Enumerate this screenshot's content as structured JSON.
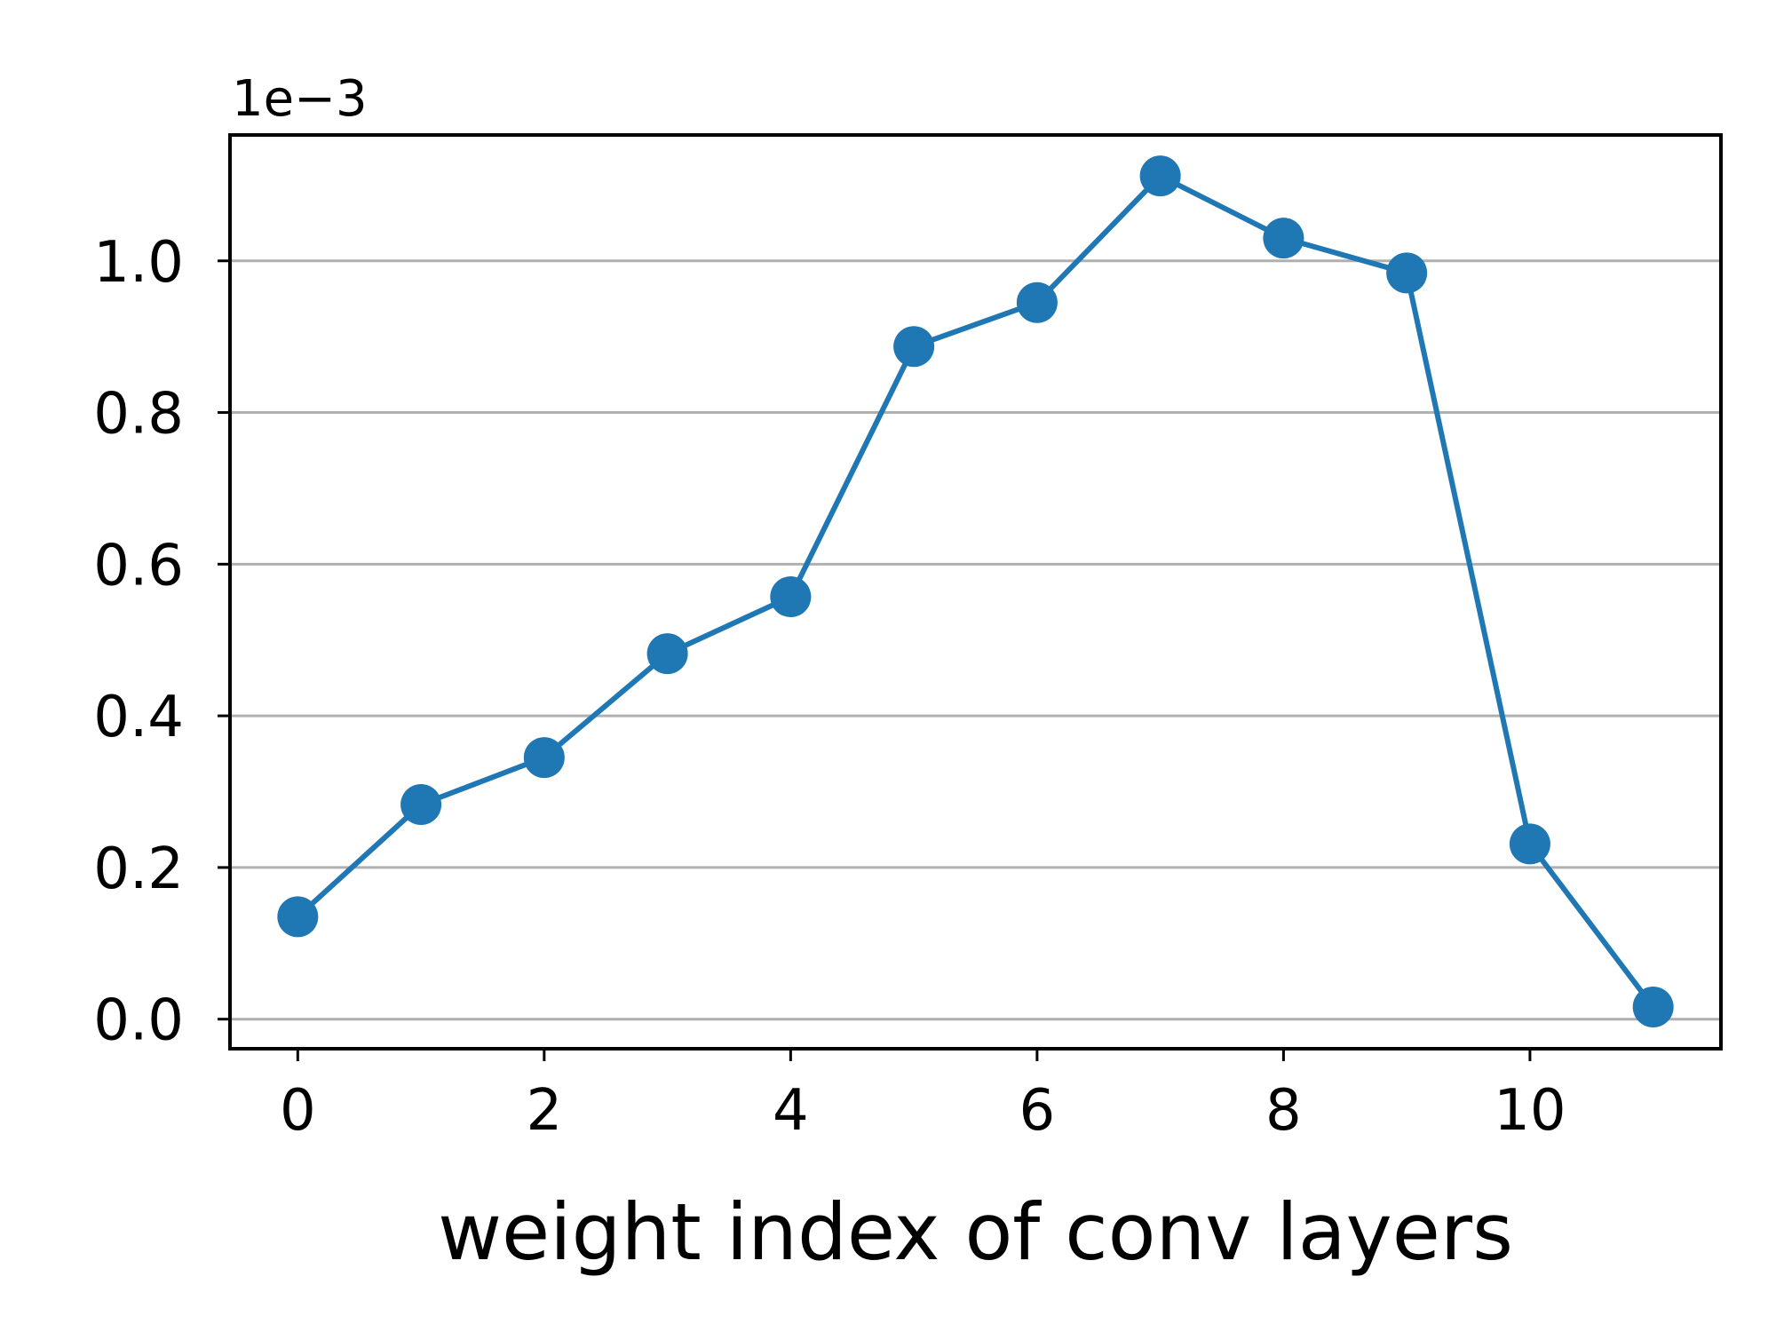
{
  "chart_data": {
    "type": "line",
    "title": "",
    "xlabel": "weight index of conv layers",
    "ylabel": "",
    "y_offset_label": "1e−3",
    "xlim": [
      -0.55,
      11.55
    ],
    "ylim": [
      -0.039,
      1.166
    ],
    "x_ticks": [
      0,
      2,
      4,
      6,
      8,
      10
    ],
    "x_tick_labels": [
      "0",
      "2",
      "4",
      "6",
      "8",
      "10"
    ],
    "y_ticks": [
      0.0,
      0.2,
      0.4,
      0.6,
      0.8,
      1.0
    ],
    "y_tick_labels": [
      "0.0",
      "0.2",
      "0.4",
      "0.6",
      "0.8",
      "1.0"
    ],
    "grid": "horizontal",
    "color": "#1f77b4",
    "grid_color": "#b0b0b0",
    "series": [
      {
        "x": [
          0,
          1,
          2,
          3,
          4,
          5,
          6,
          7,
          8,
          9,
          10,
          11
        ],
        "values": [
          0.135,
          0.283,
          0.345,
          0.482,
          0.557,
          0.887,
          0.945,
          1.112,
          1.03,
          0.984,
          0.231,
          0.016
        ]
      }
    ]
  }
}
